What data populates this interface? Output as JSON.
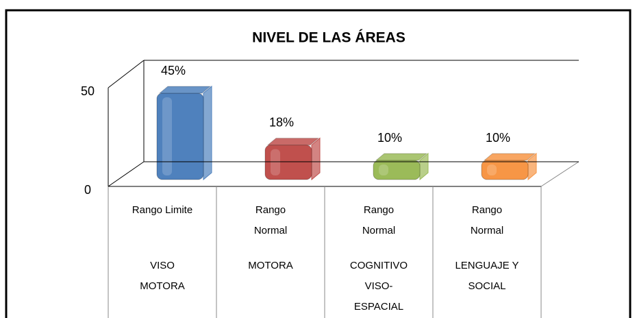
{
  "chart_data": {
    "type": "bar3d",
    "title": "NIVEL DE LAS ÁREAS",
    "categories": [
      "Rango Limite",
      "Rango Normal",
      "Rango Normal",
      "Rango Normal"
    ],
    "category_groups": [
      "VISO MOTORA",
      "MOTORA",
      "COGNITIVO VISO-ESPACIAL",
      "LENGUAJE Y SOCIAL"
    ],
    "values": [
      45,
      18,
      10,
      10
    ],
    "value_labels": [
      "45%",
      "18%",
      "10%",
      "10%"
    ],
    "colors": [
      "#4f81bd",
      "#c0504d",
      "#9bbb59",
      "#f79646"
    ],
    "ylim": [
      0,
      50
    ],
    "yticks": [
      0,
      50
    ]
  }
}
